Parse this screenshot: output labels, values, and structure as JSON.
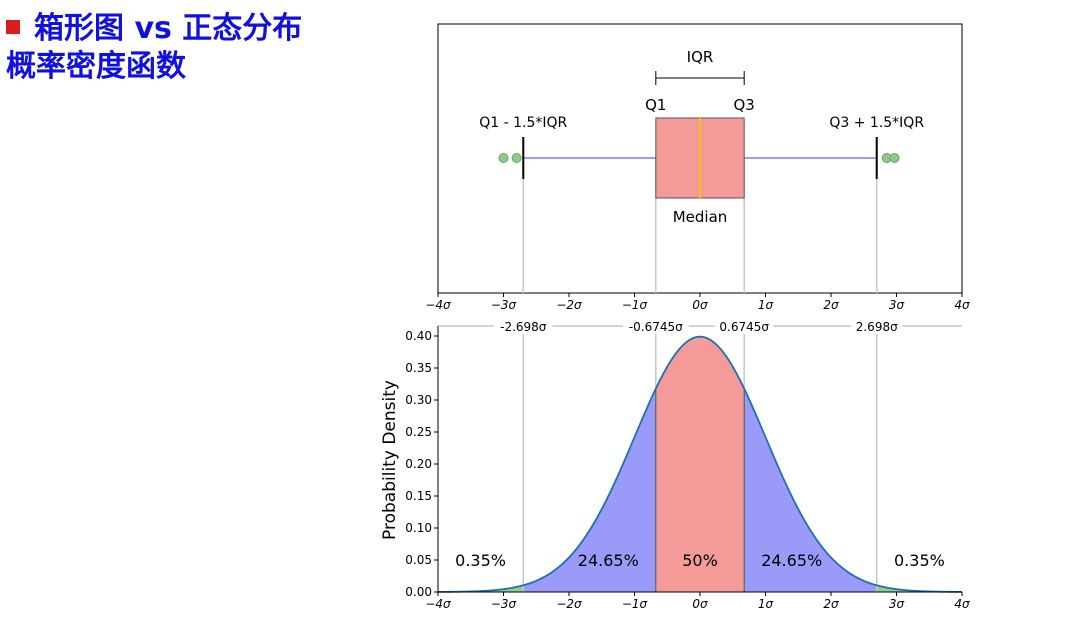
{
  "title": {
    "line1": "箱形图 vs 正态分布",
    "line2": "概率密度函数"
  },
  "chart_data": [
    {
      "type": "box",
      "xlim": [
        -4,
        4
      ],
      "x_tick_labels": [
        "−4σ",
        "−3σ",
        "−2σ",
        "−1σ",
        "0σ",
        "1σ",
        "2σ",
        "3σ",
        "4σ"
      ],
      "box": {
        "q1": -0.6745,
        "median": 0,
        "q3": 0.6745,
        "whisker_low": -2.698,
        "whisker_high": 2.698
      },
      "outliers": [
        -3.0,
        -2.8,
        2.85,
        2.97
      ],
      "annotations": {
        "iqr": "IQR",
        "q1": "Q1",
        "q3": "Q3",
        "lower_fence": "Q1 - 1.5*IQR",
        "upper_fence": "Q3 + 1.5*IQR",
        "median": "Median"
      },
      "colors": {
        "box": "#f49a98",
        "median": "#ffc000",
        "whisker": "#7b7bff",
        "outlier": "#90c890"
      }
    },
    {
      "type": "area",
      "xlim": [
        -4,
        4
      ],
      "ylim": [
        0,
        0.4
      ],
      "ylabel": "Probability Density",
      "x_tick_labels": [
        "−4σ",
        "−3σ",
        "−2σ",
        "−1σ",
        "0σ",
        "1σ",
        "2σ",
        "3σ",
        "4σ"
      ],
      "y_ticks": [
        0.0,
        0.05,
        0.1,
        0.15,
        0.2,
        0.25,
        0.3,
        0.35,
        0.4
      ],
      "y_tick_labels": [
        "0.00",
        "0.05",
        "0.10",
        "0.15",
        "0.20",
        "0.25",
        "0.30",
        "0.35",
        "0.40"
      ],
      "top_labels": [
        {
          "x": -2.698,
          "label": "-2.698σ"
        },
        {
          "x": -0.6745,
          "label": "-0.6745σ"
        },
        {
          "x": 0.6745,
          "label": "0.6745σ"
        },
        {
          "x": 2.698,
          "label": "2.698σ"
        }
      ],
      "regions": [
        {
          "from": -4,
          "to": -2.698,
          "label": "0.35%",
          "label_x": -3.35,
          "color": "#8fcf8f"
        },
        {
          "from": -2.698,
          "to": -0.6745,
          "label": "24.65%",
          "label_x": -1.4,
          "color": "#9a9af8"
        },
        {
          "from": -0.6745,
          "to": 0.6745,
          "label": "50%",
          "label_x": 0,
          "color": "#f49a98"
        },
        {
          "from": 0.6745,
          "to": 2.698,
          "label": "24.65%",
          "label_x": 1.4,
          "color": "#9a9af8"
        },
        {
          "from": 2.698,
          "to": 4,
          "label": "0.35%",
          "label_x": 3.35,
          "color": "#8fcf8f"
        }
      ],
      "curve": {
        "type": "normal_pdf",
        "mean": 0,
        "sd": 1,
        "color": "#1f6fb4"
      }
    }
  ]
}
